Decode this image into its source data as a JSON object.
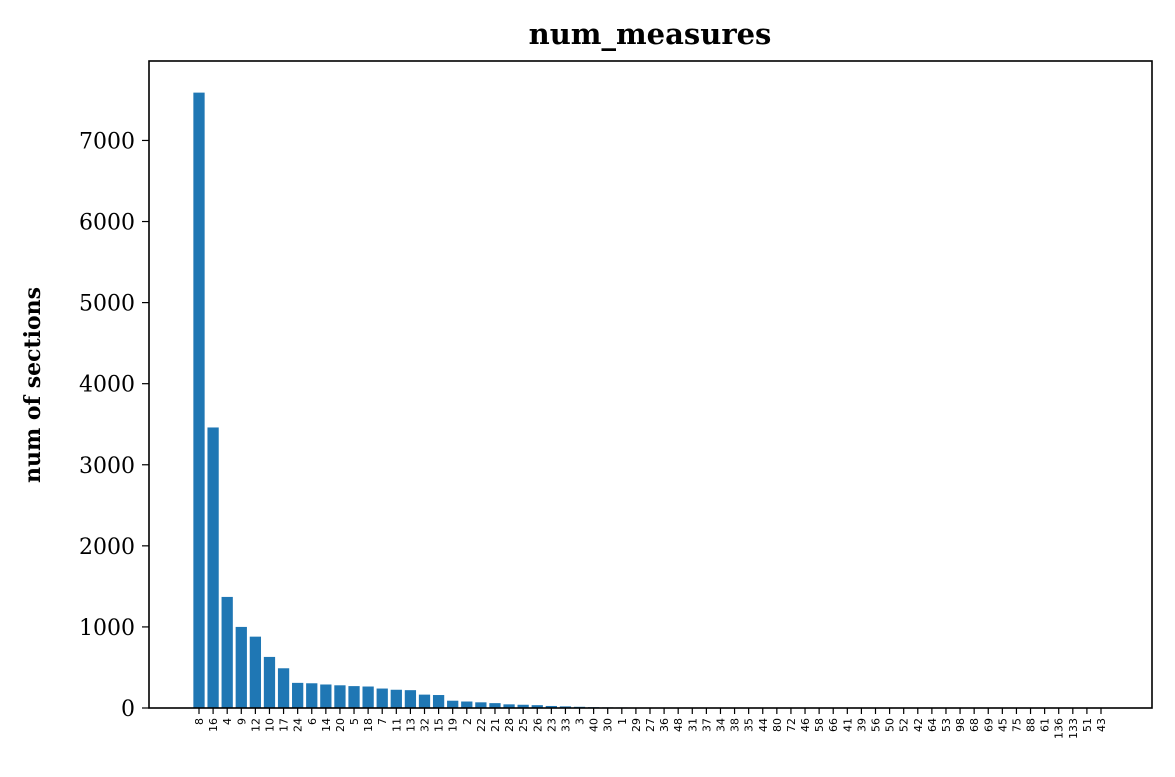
{
  "chart_data": {
    "type": "bar",
    "title": "num_measures",
    "xlabel": "",
    "ylabel": "num of sections",
    "ylim": [
      0,
      7980
    ],
    "yticks": [
      0,
      1000,
      2000,
      3000,
      4000,
      5000,
      6000,
      7000
    ],
    "grid": false,
    "bar_color": "#1f77b4",
    "categories": [
      "8",
      "16",
      "4",
      "9",
      "12",
      "10",
      "17",
      "24",
      "6",
      "14",
      "20",
      "5",
      "18",
      "7",
      "11",
      "13",
      "32",
      "15",
      "19",
      "2",
      "22",
      "21",
      "28",
      "25",
      "26",
      "23",
      "33",
      "3",
      "40",
      "30",
      "1",
      "29",
      "27",
      "36",
      "48",
      "31",
      "37",
      "34",
      "38",
      "35",
      "44",
      "80",
      "72",
      "46",
      "58",
      "66",
      "41",
      "39",
      "56",
      "50",
      "52",
      "42",
      "64",
      "53",
      "98",
      "68",
      "69",
      "45",
      "75",
      "88",
      "61",
      "136",
      "133",
      "51",
      "43"
    ],
    "values": [
      7590,
      3460,
      1370,
      1000,
      880,
      630,
      490,
      310,
      305,
      290,
      280,
      270,
      265,
      240,
      225,
      220,
      165,
      160,
      90,
      80,
      70,
      60,
      45,
      40,
      35,
      25,
      20,
      15,
      10,
      8,
      7,
      6,
      5,
      4,
      4,
      3,
      3,
      3,
      2,
      2,
      2,
      2,
      2,
      1,
      1,
      1,
      1,
      1,
      1,
      1,
      1,
      1,
      1,
      1,
      1,
      1,
      1,
      1,
      1,
      1,
      1,
      1,
      1,
      1,
      1
    ]
  }
}
